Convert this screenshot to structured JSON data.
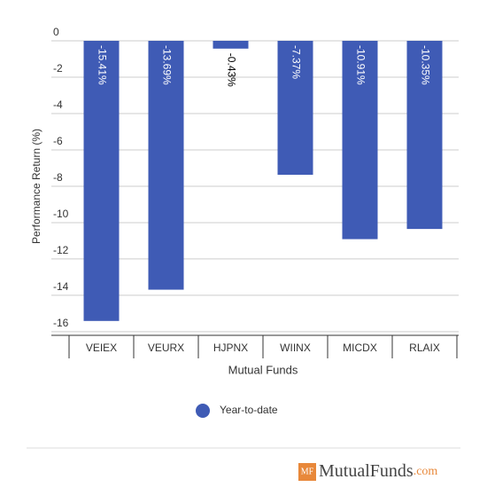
{
  "chart_data": {
    "type": "bar",
    "x_label": "Mutual Funds",
    "y_label": "Performance Return (%)",
    "categories": [
      "VEIEX",
      "VEURX",
      "HJPNX",
      "WIINX",
      "MICDX",
      "RLAIX"
    ],
    "series": [
      {
        "name": "Year-to-date",
        "color": "#3f5bb5",
        "values": [
          -15.41,
          -13.69,
          -0.43,
          -7.37,
          -10.91,
          -10.35
        ],
        "value_labels": [
          "-15.41%",
          "-13.69%",
          "-0.43%",
          "-7.37%",
          "-10.91%",
          "-10.35%"
        ]
      }
    ],
    "ylim": [
      -16.2,
      0
    ],
    "yticks": [
      0,
      -2,
      -4,
      -6,
      -8,
      -10,
      -12,
      -14,
      -16
    ],
    "grid": true
  },
  "footer": {
    "logo_badge": "MF",
    "logo_text": "MutualFunds",
    "logo_suffix": ".com"
  }
}
